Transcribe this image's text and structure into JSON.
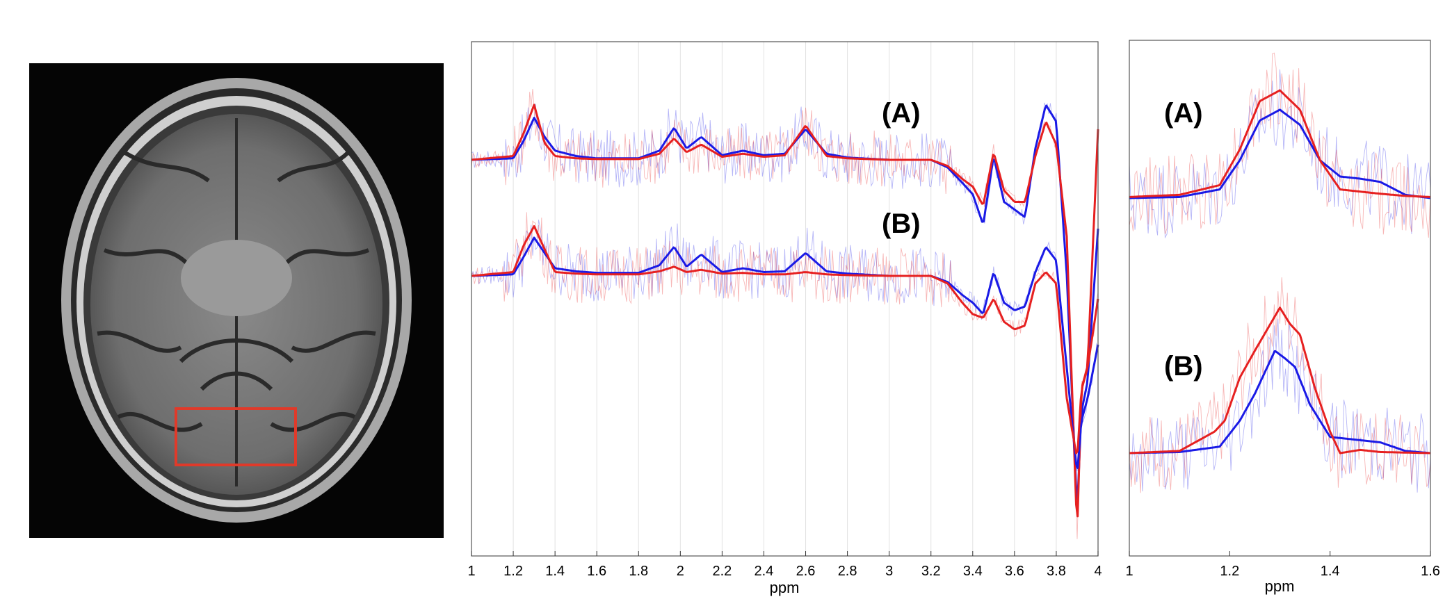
{
  "chart_data": [
    {
      "type": "line",
      "panel": "main",
      "xlabel": "ppm",
      "xlim": [
        1,
        4
      ],
      "xticks": [
        1,
        1.2,
        1.4,
        1.6,
        1.8,
        2,
        2.2,
        2.4,
        2.6,
        2.8,
        3,
        3.2,
        3.4,
        3.6,
        3.8,
        4
      ],
      "xtick_labels": [
        "1",
        "1.2",
        "1.4",
        "1.6",
        "1.8",
        "2",
        "2.2",
        "2.4",
        "2.6",
        "2.8",
        "3",
        "3.2",
        "3.4",
        "3.6",
        "3.8",
        "4"
      ],
      "grid": "vertical",
      "colors": {
        "blue": "#1a1ae6",
        "red": "#e62020"
      },
      "annotations": [
        "(A)",
        "(B)"
      ],
      "series": [
        {
          "trace": "A",
          "color": "#1a1ae6",
          "x": [
            1.0,
            1.2,
            1.25,
            1.3,
            1.35,
            1.4,
            1.5,
            1.6,
            1.8,
            1.9,
            1.97,
            2.03,
            2.1,
            2.2,
            2.3,
            2.4,
            2.5,
            2.6,
            2.7,
            2.8,
            3.0,
            3.2,
            3.28,
            3.35,
            3.4,
            3.45,
            3.5,
            3.55,
            3.6,
            3.65,
            3.7,
            3.75,
            3.8,
            3.85,
            3.9,
            3.92,
            3.95,
            4.0
          ],
          "y": [
            0,
            0.02,
            0.25,
            0.55,
            0.3,
            0.12,
            0.05,
            0.02,
            0.02,
            0.12,
            0.42,
            0.15,
            0.3,
            0.06,
            0.12,
            0.06,
            0.08,
            0.4,
            0.08,
            0.03,
            0,
            0,
            -0.1,
            -0.3,
            -0.45,
            -0.85,
            0.05,
            -0.55,
            -0.65,
            -0.75,
            0.15,
            0.72,
            0.5,
            -1.5,
            -4.6,
            -3.3,
            -2.9,
            -0.9
          ]
        },
        {
          "trace": "A",
          "color": "#e62020",
          "x": [
            1.0,
            1.2,
            1.25,
            1.3,
            1.35,
            1.4,
            1.5,
            1.6,
            1.8,
            1.9,
            1.97,
            2.03,
            2.1,
            2.2,
            2.3,
            2.4,
            2.5,
            2.6,
            2.7,
            2.8,
            3.0,
            3.2,
            3.28,
            3.35,
            3.4,
            3.45,
            3.5,
            3.55,
            3.6,
            3.65,
            3.7,
            3.75,
            3.8,
            3.85,
            3.9,
            3.92,
            3.95,
            4.0
          ],
          "y": [
            0,
            0.05,
            0.35,
            0.72,
            0.22,
            0.05,
            0.02,
            0.01,
            0.01,
            0.08,
            0.28,
            0.1,
            0.2,
            0.04,
            0.08,
            0.04,
            0.06,
            0.45,
            0.05,
            0.02,
            0,
            0,
            -0.08,
            -0.25,
            -0.35,
            -0.6,
            0.1,
            -0.4,
            -0.55,
            -0.55,
            0.05,
            0.5,
            0.2,
            -1.0,
            -4.9,
            -3.0,
            -2.7,
            0.4
          ]
        },
        {
          "trace": "B",
          "color": "#1a1ae6",
          "x": [
            1.0,
            1.2,
            1.25,
            1.3,
            1.35,
            1.4,
            1.5,
            1.6,
            1.8,
            1.9,
            1.97,
            2.03,
            2.1,
            2.2,
            2.3,
            2.4,
            2.5,
            2.6,
            2.7,
            2.8,
            3.0,
            3.2,
            3.28,
            3.35,
            3.4,
            3.45,
            3.5,
            3.55,
            3.6,
            3.65,
            3.7,
            3.75,
            3.8,
            3.85,
            3.9,
            3.92,
            3.95,
            4.0
          ],
          "y": [
            0,
            0.02,
            0.25,
            0.5,
            0.3,
            0.1,
            0.06,
            0.04,
            0.04,
            0.14,
            0.38,
            0.12,
            0.28,
            0.05,
            0.1,
            0.05,
            0.06,
            0.3,
            0.06,
            0.03,
            0,
            0,
            -0.08,
            -0.25,
            -0.35,
            -0.5,
            0.05,
            -0.35,
            -0.45,
            -0.4,
            0.05,
            0.38,
            0.2,
            -1.2,
            -2.6,
            -1.9,
            -1.6,
            -0.9
          ]
        },
        {
          "trace": "B",
          "color": "#e62020",
          "x": [
            1.0,
            1.2,
            1.25,
            1.3,
            1.35,
            1.4,
            1.5,
            1.6,
            1.8,
            1.9,
            1.97,
            2.03,
            2.1,
            2.2,
            2.3,
            2.4,
            2.5,
            2.6,
            2.7,
            2.8,
            3.0,
            3.2,
            3.28,
            3.35,
            3.4,
            3.45,
            3.5,
            3.55,
            3.6,
            3.65,
            3.7,
            3.75,
            3.8,
            3.85,
            3.9,
            3.92,
            3.95,
            4.0
          ],
          "y": [
            0,
            0.05,
            0.4,
            0.65,
            0.35,
            0.05,
            0.03,
            0.02,
            0.02,
            0.06,
            0.12,
            0.05,
            0.08,
            0.03,
            0.04,
            0.02,
            0.02,
            0.05,
            0.02,
            0.01,
            0,
            0,
            -0.1,
            -0.35,
            -0.5,
            -0.55,
            -0.3,
            -0.6,
            -0.7,
            -0.65,
            -0.1,
            0.05,
            -0.1,
            -1.6,
            -2.4,
            -1.5,
            -1.2,
            -0.3
          ]
        }
      ]
    },
    {
      "type": "line",
      "panel": "zoom",
      "xlabel": "ppm",
      "xlim": [
        1,
        1.6
      ],
      "xticks": [
        1,
        1.2,
        1.4,
        1.6
      ],
      "xtick_labels": [
        "1",
        "1.2",
        "1.4",
        "1.6"
      ],
      "grid": "none",
      "annotations": [
        "(A)",
        "(B)"
      ],
      "series": [
        {
          "trace": "A",
          "color": "#1a1ae6",
          "x": [
            1.0,
            1.1,
            1.18,
            1.22,
            1.26,
            1.3,
            1.34,
            1.38,
            1.42,
            1.46,
            1.5,
            1.55,
            1.6
          ],
          "y": [
            0,
            0.01,
            0.08,
            0.35,
            0.72,
            0.82,
            0.68,
            0.35,
            0.2,
            0.18,
            0.15,
            0.03,
            0
          ]
        },
        {
          "trace": "A",
          "color": "#e62020",
          "x": [
            1.0,
            1.1,
            1.18,
            1.22,
            1.26,
            1.3,
            1.34,
            1.38,
            1.42,
            1.46,
            1.5,
            1.55,
            1.6
          ],
          "y": [
            0.01,
            0.03,
            0.12,
            0.45,
            0.9,
            1.0,
            0.82,
            0.35,
            0.08,
            0.06,
            0.04,
            0.02,
            0.01
          ]
        },
        {
          "trace": "B",
          "color": "#1a1ae6",
          "x": [
            1.0,
            1.1,
            1.18,
            1.22,
            1.25,
            1.29,
            1.31,
            1.33,
            1.36,
            1.4,
            1.46,
            1.5,
            1.55,
            1.6
          ],
          "y": [
            0,
            0.01,
            0.06,
            0.3,
            0.55,
            0.95,
            0.88,
            0.8,
            0.45,
            0.15,
            0.12,
            0.1,
            0.02,
            0
          ]
        },
        {
          "trace": "B",
          "color": "#e62020",
          "x": [
            1.0,
            1.1,
            1.17,
            1.19,
            1.22,
            1.25,
            1.3,
            1.32,
            1.34,
            1.37,
            1.4,
            1.42,
            1.46,
            1.5,
            1.6
          ],
          "y": [
            0,
            0.02,
            0.2,
            0.3,
            0.7,
            0.95,
            1.35,
            1.2,
            1.1,
            0.6,
            0.2,
            0,
            0.03,
            0.01,
            0
          ]
        }
      ]
    }
  ]
}
